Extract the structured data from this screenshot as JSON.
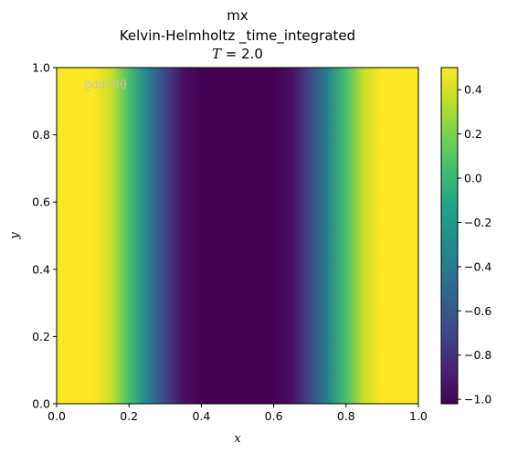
{
  "chart_data": {
    "type": "heatmap",
    "title_lines": [
      "mx",
      "Kelvin-Helmholtz _time_integrated"
    ],
    "time_label_var": "T",
    "time_label_rest": " = 2.0",
    "xlabel": "x",
    "ylabel": "y",
    "xlim": [
      0.0,
      1.0
    ],
    "ylim": [
      0.0,
      1.0
    ],
    "x_ticks": [
      "0.0",
      "0.2",
      "0.4",
      "0.6",
      "0.8",
      "1.0"
    ],
    "y_ticks": [
      "0.0",
      "0.2",
      "0.4",
      "0.6",
      "0.8",
      "1.0"
    ],
    "colorbar": {
      "min": -1.02,
      "max": 0.5,
      "ticks": [
        "0.4",
        "0.2",
        "0.0",
        "−0.2",
        "−0.4",
        "−0.6",
        "−0.8",
        "−1.0"
      ],
      "tick_values": [
        0.4,
        0.2,
        0.0,
        -0.2,
        -0.4,
        -0.6,
        -0.8,
        -1.0
      ],
      "colormap": "viridis"
    },
    "field_profile": {
      "description_axis": "x",
      "x": [
        0.0,
        0.1,
        0.15,
        0.2,
        0.25,
        0.3,
        0.35,
        0.4,
        0.5,
        0.6,
        0.65,
        0.7,
        0.75,
        0.8,
        0.85,
        0.9,
        1.0
      ],
      "values": [
        0.5,
        0.5,
        0.38,
        0.05,
        -0.35,
        -0.7,
        -0.95,
        -1.02,
        -1.02,
        -1.02,
        -0.95,
        -0.7,
        -0.35,
        0.05,
        0.38,
        0.5,
        0.5
      ]
    },
    "watermark": "@ddf00"
  }
}
